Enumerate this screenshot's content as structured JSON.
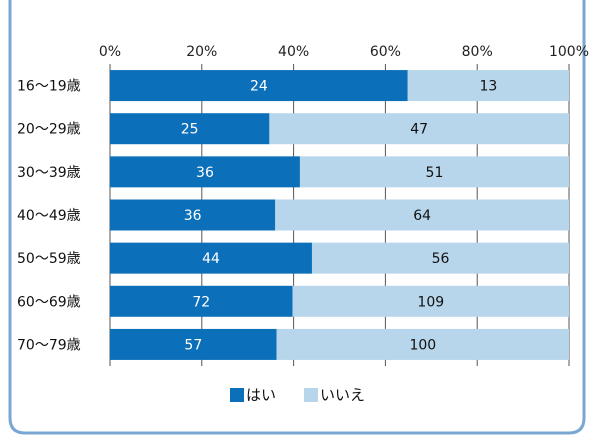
{
  "chart_data": {
    "type": "bar",
    "orientation": "horizontal",
    "stacked": "percent",
    "categories": [
      "16〜19歳",
      "20〜29歳",
      "30〜39歳",
      "40〜49歳",
      "50〜59歳",
      "60〜69歳",
      "70〜79歳"
    ],
    "series": [
      {
        "name": "はい",
        "values": [
          24,
          25,
          36,
          36,
          44,
          72,
          57
        ],
        "color": "#0c6fb9",
        "label_color": "#ffffff"
      },
      {
        "name": "いいえ",
        "values": [
          13,
          47,
          51,
          64,
          56,
          109,
          100
        ],
        "color": "#b7d6ec",
        "label_color": "#111111"
      }
    ],
    "x_ticks": [
      "0%",
      "20%",
      "40%",
      "60%",
      "80%",
      "100%"
    ],
    "xlim": [
      0,
      100
    ],
    "legend_position": "bottom",
    "grid": true
  },
  "frame": {
    "border_color": "#7aa6d2"
  }
}
